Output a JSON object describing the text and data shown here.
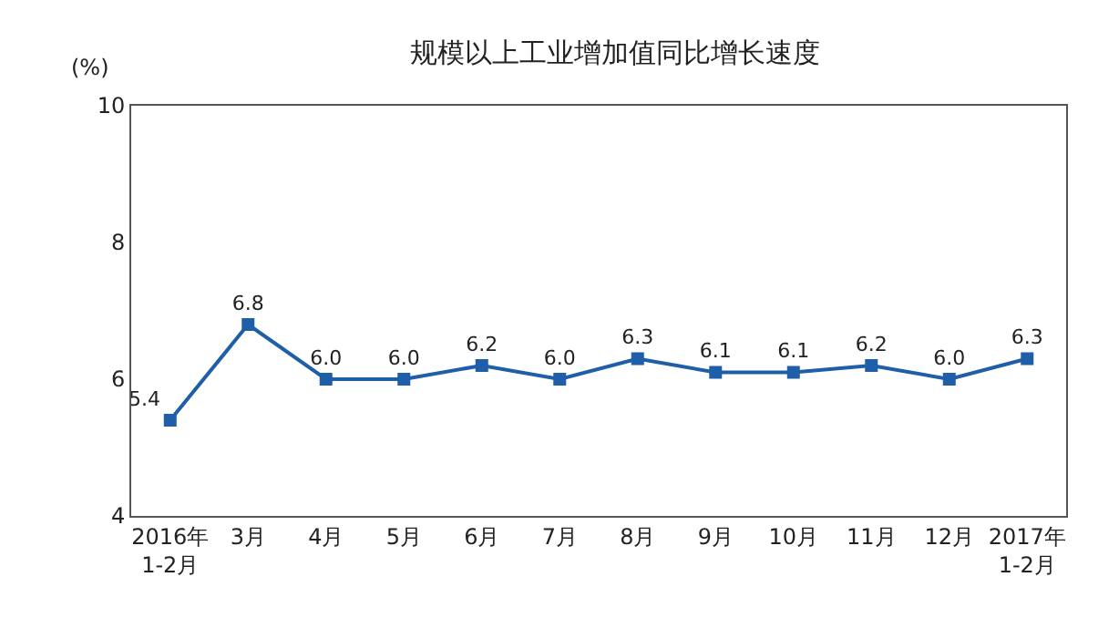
{
  "chart_data": {
    "type": "line",
    "title": "规模以上工业增加值同比增长速度",
    "ylabel": "(%)",
    "categories": [
      "2016年\n1-2月",
      "3月",
      "4月",
      "5月",
      "6月",
      "7月",
      "8月",
      "9月",
      "10月",
      "11月",
      "12月",
      "2017年\n1-2月"
    ],
    "series": [
      {
        "color": "#1f5ea8",
        "values": [
          5.4,
          6.8,
          6.0,
          6.0,
          6.2,
          6.0,
          6.3,
          6.1,
          6.1,
          6.2,
          6.0,
          6.3
        ],
        "value_labels": [
          "5.4",
          "6.8",
          "6.0",
          "6.0",
          "6.2",
          "6.0",
          "6.3",
          "6.1",
          "6.1",
          "6.2",
          "6.0",
          "6.3"
        ]
      }
    ],
    "ylim": [
      4,
      10
    ],
    "yticks": [
      4,
      6,
      8,
      10
    ],
    "grid": false,
    "marker": "square",
    "line_style": "solid"
  }
}
